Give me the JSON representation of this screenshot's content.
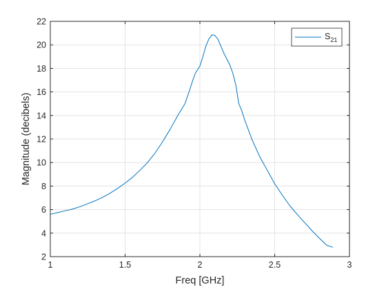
{
  "chart_data": {
    "type": "line",
    "xlabel": "Freq [GHz]",
    "ylabel": "Magnitude (decibels)",
    "xlim": [
      1,
      3
    ],
    "ylim": [
      2,
      22
    ],
    "xticks": [
      "1",
      "1.5",
      "2",
      "2.5",
      "3"
    ],
    "yticks": [
      "2",
      "4",
      "6",
      "8",
      "10",
      "12",
      "14",
      "16",
      "18",
      "20",
      "22"
    ],
    "grid": true,
    "legend_position": "top-right",
    "series": [
      {
        "name": "S21",
        "name_base": "S",
        "name_sub": "21",
        "color": "#0072BD",
        "x": [
          1.0,
          1.05,
          1.1,
          1.15,
          1.2,
          1.25,
          1.3,
          1.35,
          1.4,
          1.45,
          1.5,
          1.55,
          1.6,
          1.65,
          1.7,
          1.75,
          1.8,
          1.85,
          1.9,
          1.93,
          1.95,
          1.97,
          2.0,
          2.02,
          2.04,
          2.06,
          2.08,
          2.1,
          2.12,
          2.14,
          2.16,
          2.18,
          2.2,
          2.22,
          2.24,
          2.26,
          2.28,
          2.3,
          2.35,
          2.4,
          2.45,
          2.5,
          2.55,
          2.6,
          2.65,
          2.7,
          2.75,
          2.8,
          2.85,
          2.89
        ],
        "y": [
          5.6,
          5.75,
          5.9,
          6.05,
          6.25,
          6.5,
          6.75,
          7.05,
          7.4,
          7.8,
          8.25,
          8.75,
          9.35,
          10.0,
          10.8,
          11.75,
          12.8,
          13.95,
          15.0,
          16.1,
          16.9,
          17.6,
          18.2,
          19.0,
          19.9,
          20.5,
          20.85,
          20.8,
          20.5,
          19.9,
          19.3,
          18.8,
          18.3,
          17.6,
          16.6,
          15.0,
          14.4,
          13.6,
          11.9,
          10.5,
          9.35,
          8.2,
          7.25,
          6.35,
          5.6,
          4.9,
          4.2,
          3.55,
          2.95,
          2.8
        ]
      }
    ]
  }
}
